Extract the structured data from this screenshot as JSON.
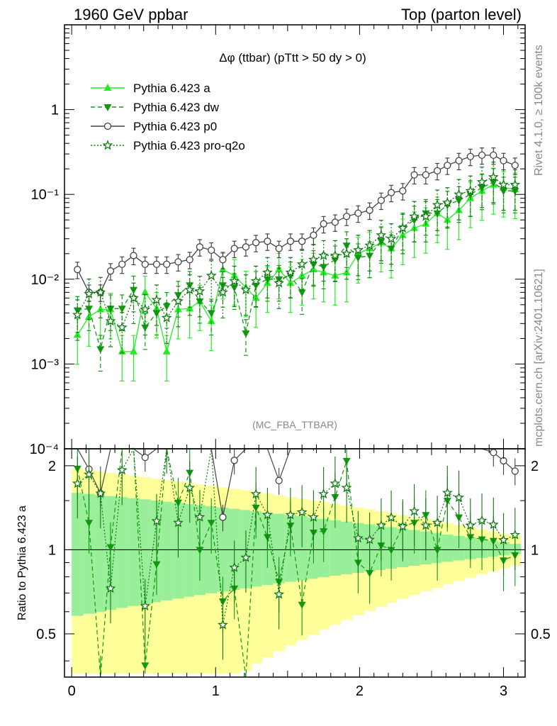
{
  "header": {
    "left": "1960 GeV ppbar",
    "right": "Top (parton level)"
  },
  "side": {
    "rivet": "Rivet 4.1.0, ≥ 100k events",
    "mcplots": "mcplots.cern.ch [arXiv:2401.10621]"
  },
  "chart_data": {
    "type": "line",
    "title": "Δφ (ttbar) (pTtt > 50 dy > 0)",
    "watermark": "(MC_FBA_TTBAR)",
    "xlabel": "",
    "ylabel_ratio": "Ratio to Pythia 6.423 a",
    "xlim": [
      -0.05,
      3.15
    ],
    "ylim_main": [
      0.0001,
      10
    ],
    "ylog_main": true,
    "ylim_ratio": [
      0.35,
      2.3
    ],
    "ylog_ratio": true,
    "x_ticks": [
      "0",
      "1",
      "2",
      "3"
    ],
    "y_ticks_main": [
      "10⁻⁴",
      "10⁻³",
      "10⁻²",
      "10⁻¹",
      "1"
    ],
    "y_ticks_ratio": [
      "0.5",
      "1",
      "2"
    ],
    "legend_position": "top-left",
    "x": [
      0.04,
      0.12,
      0.2,
      0.27,
      0.35,
      0.43,
      0.51,
      0.59,
      0.66,
      0.74,
      0.82,
      0.89,
      0.97,
      1.05,
      1.13,
      1.21,
      1.28,
      1.36,
      1.44,
      1.52,
      1.6,
      1.68,
      1.75,
      1.83,
      1.91,
      1.99,
      2.07,
      2.15,
      2.22,
      2.3,
      2.38,
      2.46,
      2.54,
      2.61,
      2.69,
      2.77,
      2.85,
      2.93,
      3.0,
      3.08
    ],
    "series": [
      {
        "name": "Pythia 6.423 a",
        "color": "#22ee22",
        "values": [
          0.0022,
          0.0036,
          0.0044,
          0.0044,
          0.0014,
          0.0014,
          0.007,
          0.0045,
          0.0014,
          0.0044,
          0.0045,
          0.0055,
          0.0032,
          0.013,
          0.011,
          0.008,
          0.006,
          0.009,
          0.013,
          0.009,
          0.011,
          0.013,
          0.012,
          0.011,
          0.012,
          0.02,
          0.023,
          0.027,
          0.023,
          0.033,
          0.04,
          0.045,
          0.06,
          0.05,
          0.065,
          0.09,
          0.11,
          0.13,
          0.12,
          0.115
        ]
      },
      {
        "name": "Pythia 6.423 dw",
        "color": "#119911",
        "values": [
          0.0043,
          0.0045,
          0.0015,
          0.0045,
          0.0045,
          0.0075,
          0.0027,
          0.004,
          0.0048,
          0.0065,
          0.0085,
          0.0055,
          0.004,
          0.0085,
          0.008,
          0.0023,
          0.0085,
          0.01,
          0.01,
          0.011,
          0.007,
          0.015,
          0.014,
          0.017,
          0.025,
          0.018,
          0.019,
          0.028,
          0.023,
          0.04,
          0.05,
          0.06,
          0.06,
          0.075,
          0.085,
          0.1,
          0.12,
          0.14,
          0.11,
          0.11
        ]
      },
      {
        "name": "Pythia 6.423 p0",
        "color": "#444444",
        "values": [
          0.013,
          0.007,
          0.007,
          0.0125,
          0.015,
          0.019,
          0.015,
          0.015,
          0.015,
          0.016,
          0.017,
          0.024,
          0.022,
          0.017,
          0.023,
          0.024,
          0.027,
          0.028,
          0.023,
          0.028,
          0.028,
          0.033,
          0.045,
          0.047,
          0.055,
          0.06,
          0.065,
          0.085,
          0.105,
          0.11,
          0.17,
          0.17,
          0.19,
          0.22,
          0.25,
          0.28,
          0.29,
          0.29,
          0.25,
          0.22
        ]
      },
      {
        "name": "Pythia 6.423 pro-q2o",
        "color": "#117711",
        "values": [
          0.0038,
          0.0067,
          0.007,
          0.0032,
          0.0027,
          0.006,
          0.0044,
          0.0057,
          0.0035,
          0.0055,
          0.0075,
          0.0072,
          0.011,
          0.007,
          0.0095,
          0.0075,
          0.0095,
          0.012,
          0.009,
          0.012,
          0.015,
          0.017,
          0.019,
          0.019,
          0.02,
          0.022,
          0.025,
          0.033,
          0.03,
          0.04,
          0.055,
          0.055,
          0.075,
          0.08,
          0.1,
          0.11,
          0.14,
          0.16,
          0.13,
          0.13
        ]
      }
    ]
  }
}
